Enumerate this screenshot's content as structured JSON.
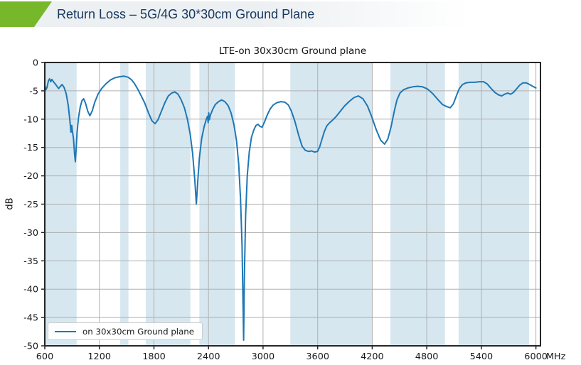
{
  "header": {
    "title": "Return Loss – 5G/4G 30*30cm Ground Plane",
    "accent_color": "#77b82a",
    "title_color": "#17375e"
  },
  "chart_data": {
    "type": "line",
    "title": "LTE-on 30x30cm Ground plane",
    "ylabel": "dB",
    "x_unit": "MHz",
    "xlim": [
      600,
      6050
    ],
    "ylim": [
      -50,
      0
    ],
    "x_ticks": [
      600,
      1200,
      1800,
      2400,
      3000,
      3600,
      4200,
      4800,
      5400,
      6000
    ],
    "y_ticks": [
      0,
      -5,
      -10,
      -15,
      -20,
      -25,
      -30,
      -35,
      -40,
      -45,
      -50
    ],
    "grid": true,
    "grid_color": "#b0b0b0",
    "spine_color": "#262626",
    "line_color": "#1f77b4",
    "band_color": "#d6e7f0",
    "highlight_bands_mhz": [
      [
        600,
        950
      ],
      [
        1430,
        1520
      ],
      [
        1710,
        2200
      ],
      [
        2300,
        2690
      ],
      [
        3300,
        4200
      ],
      [
        4400,
        5000
      ],
      [
        5150,
        5925
      ]
    ],
    "legend": {
      "position": "lower left",
      "entries": [
        {
          "label": "on 30x30cm Ground plane",
          "color": "#1f77b4"
        }
      ]
    },
    "series": [
      {
        "name": "on 30x30cm Ground plane",
        "points": [
          [
            600,
            -4.0
          ],
          [
            612,
            -4.8
          ],
          [
            625,
            -4.4
          ],
          [
            640,
            -3.2
          ],
          [
            652,
            -2.9
          ],
          [
            665,
            -3.4
          ],
          [
            678,
            -3.0
          ],
          [
            700,
            -3.5
          ],
          [
            725,
            -4.0
          ],
          [
            752,
            -4.6
          ],
          [
            772,
            -4.2
          ],
          [
            790,
            -3.9
          ],
          [
            812,
            -4.4
          ],
          [
            835,
            -5.5
          ],
          [
            858,
            -7.6
          ],
          [
            876,
            -10.3
          ],
          [
            888,
            -12.3
          ],
          [
            896,
            -11.1
          ],
          [
            904,
            -12.2
          ],
          [
            915,
            -13.4
          ],
          [
            928,
            -16.2
          ],
          [
            936,
            -17.5
          ],
          [
            945,
            -15.2
          ],
          [
            955,
            -12.3
          ],
          [
            970,
            -9.8
          ],
          [
            990,
            -7.8
          ],
          [
            1010,
            -6.7
          ],
          [
            1028,
            -6.4
          ],
          [
            1048,
            -7.2
          ],
          [
            1072,
            -8.6
          ],
          [
            1096,
            -9.4
          ],
          [
            1120,
            -8.6
          ],
          [
            1150,
            -7.0
          ],
          [
            1185,
            -5.6
          ],
          [
            1225,
            -4.6
          ],
          [
            1270,
            -3.8
          ],
          [
            1320,
            -3.1
          ],
          [
            1370,
            -2.7
          ],
          [
            1425,
            -2.5
          ],
          [
            1470,
            -2.4
          ],
          [
            1515,
            -2.6
          ],
          [
            1550,
            -3.0
          ],
          [
            1585,
            -3.7
          ],
          [
            1625,
            -4.8
          ],
          [
            1660,
            -5.9
          ],
          [
            1700,
            -7.2
          ],
          [
            1740,
            -8.9
          ],
          [
            1778,
            -10.3
          ],
          [
            1812,
            -10.8
          ],
          [
            1845,
            -10.1
          ],
          [
            1882,
            -8.6
          ],
          [
            1920,
            -7.1
          ],
          [
            1958,
            -5.9
          ],
          [
            1995,
            -5.4
          ],
          [
            2030,
            -5.2
          ],
          [
            2065,
            -5.6
          ],
          [
            2100,
            -6.6
          ],
          [
            2135,
            -8.0
          ],
          [
            2168,
            -10.0
          ],
          [
            2198,
            -12.6
          ],
          [
            2225,
            -16.0
          ],
          [
            2248,
            -20.5
          ],
          [
            2266,
            -25.0
          ],
          [
            2282,
            -21.0
          ],
          [
            2300,
            -16.8
          ],
          [
            2325,
            -13.4
          ],
          [
            2352,
            -11.3
          ],
          [
            2378,
            -9.9
          ],
          [
            2390,
            -9.5
          ],
          [
            2396,
            -10.6
          ],
          [
            2402,
            -8.9
          ],
          [
            2409,
            -10.1
          ],
          [
            2420,
            -9.3
          ],
          [
            2445,
            -8.3
          ],
          [
            2475,
            -7.4
          ],
          [
            2510,
            -6.9
          ],
          [
            2545,
            -6.6
          ],
          [
            2580,
            -6.9
          ],
          [
            2615,
            -7.6
          ],
          [
            2648,
            -8.9
          ],
          [
            2680,
            -11.0
          ],
          [
            2708,
            -13.8
          ],
          [
            2732,
            -18.0
          ],
          [
            2752,
            -24.0
          ],
          [
            2768,
            -32.0
          ],
          [
            2780,
            -43.0
          ],
          [
            2786,
            -49.0
          ],
          [
            2794,
            -38.0
          ],
          [
            2808,
            -27.0
          ],
          [
            2826,
            -20.0
          ],
          [
            2848,
            -15.8
          ],
          [
            2872,
            -13.2
          ],
          [
            2898,
            -11.9
          ],
          [
            2922,
            -11.1
          ],
          [
            2945,
            -10.9
          ],
          [
            2968,
            -11.3
          ],
          [
            2990,
            -11.4
          ],
          [
            3015,
            -10.5
          ],
          [
            3045,
            -9.3
          ],
          [
            3078,
            -8.2
          ],
          [
            3112,
            -7.5
          ],
          [
            3150,
            -7.1
          ],
          [
            3195,
            -6.9
          ],
          [
            3240,
            -7.0
          ],
          [
            3278,
            -7.5
          ],
          [
            3312,
            -8.6
          ],
          [
            3350,
            -10.4
          ],
          [
            3392,
            -12.9
          ],
          [
            3430,
            -14.8
          ],
          [
            3465,
            -15.5
          ],
          [
            3500,
            -15.7
          ],
          [
            3532,
            -15.6
          ],
          [
            3565,
            -15.8
          ],
          [
            3598,
            -15.7
          ],
          [
            3622,
            -14.9
          ],
          [
            3650,
            -13.4
          ],
          [
            3675,
            -12.1
          ],
          [
            3700,
            -11.2
          ],
          [
            3728,
            -10.7
          ],
          [
            3762,
            -10.2
          ],
          [
            3800,
            -9.6
          ],
          [
            3845,
            -8.7
          ],
          [
            3895,
            -7.7
          ],
          [
            3945,
            -6.9
          ],
          [
            3998,
            -6.2
          ],
          [
            4048,
            -5.9
          ],
          [
            4098,
            -6.4
          ],
          [
            4148,
            -7.7
          ],
          [
            4198,
            -9.7
          ],
          [
            4245,
            -11.9
          ],
          [
            4292,
            -13.7
          ],
          [
            4335,
            -14.4
          ],
          [
            4372,
            -13.5
          ],
          [
            4408,
            -11.3
          ],
          [
            4440,
            -8.8
          ],
          [
            4472,
            -6.6
          ],
          [
            4505,
            -5.4
          ],
          [
            4545,
            -4.8
          ],
          [
            4592,
            -4.5
          ],
          [
            4645,
            -4.3
          ],
          [
            4700,
            -4.2
          ],
          [
            4755,
            -4.3
          ],
          [
            4810,
            -4.7
          ],
          [
            4865,
            -5.5
          ],
          [
            4920,
            -6.5
          ],
          [
            4972,
            -7.4
          ],
          [
            5020,
            -7.8
          ],
          [
            5058,
            -8.0
          ],
          [
            5092,
            -7.3
          ],
          [
            5125,
            -5.9
          ],
          [
            5158,
            -4.6
          ],
          [
            5192,
            -3.9
          ],
          [
            5230,
            -3.6
          ],
          [
            5275,
            -3.5
          ],
          [
            5325,
            -3.5
          ],
          [
            5378,
            -3.4
          ],
          [
            5425,
            -3.4
          ],
          [
            5465,
            -3.8
          ],
          [
            5508,
            -4.6
          ],
          [
            5550,
            -5.3
          ],
          [
            5588,
            -5.7
          ],
          [
            5622,
            -5.9
          ],
          [
            5655,
            -5.6
          ],
          [
            5690,
            -5.4
          ],
          [
            5722,
            -5.6
          ],
          [
            5752,
            -5.3
          ],
          [
            5785,
            -4.7
          ],
          [
            5822,
            -4.0
          ],
          [
            5858,
            -3.6
          ],
          [
            5895,
            -3.6
          ],
          [
            5932,
            -3.9
          ],
          [
            5965,
            -4.2
          ],
          [
            6000,
            -4.5
          ]
        ]
      }
    ]
  }
}
